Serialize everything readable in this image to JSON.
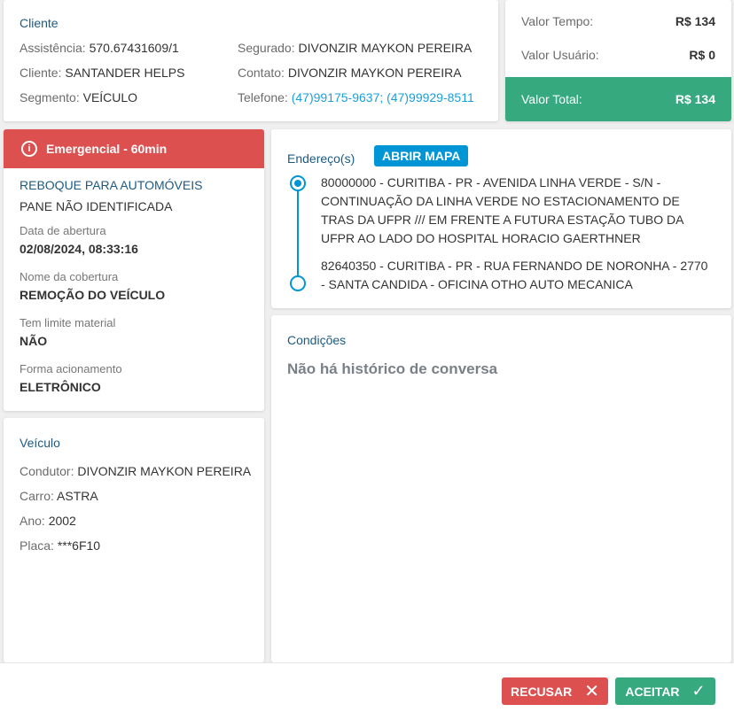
{
  "cliente": {
    "title": "Cliente",
    "assistencia_label": "Assistência:",
    "assistencia": "570.67431609/1",
    "cliente_label": "Cliente:",
    "cliente": "SANTANDER HELPS",
    "segmento_label": "Segmento:",
    "segmento": "VEÍCULO",
    "segurado_label": "Segurado:",
    "segurado": "DIVONZIR MAYKON PEREIRA",
    "contato_label": "Contato:",
    "contato": "DIVONZIR MAYKON PEREIRA",
    "telefone_label": "Telefone:",
    "telefone": "(47)99175-9637; (47)99929-8511"
  },
  "valores": {
    "tempo_label": "Valor Tempo:",
    "tempo": "R$ 134",
    "usuario_label": "Valor Usuário:",
    "usuario": "R$ 0",
    "total_label": "Valor Total:",
    "total": "R$ 134"
  },
  "servico": {
    "priority": "Emergencial - 60min",
    "tipo": "REBOQUE PARA AUTOMÓVEIS",
    "problema": "PANE NÃO IDENTIFICADA",
    "fields": [
      {
        "label": "Data de abertura",
        "value": "02/08/2024, 08:33:16"
      },
      {
        "label": "Nome da cobertura",
        "value": "REMOÇÃO DO VEÍCULO"
      },
      {
        "label": "Tem limite material",
        "value": "NÃO"
      },
      {
        "label": "Forma acionamento",
        "value": "ELETRÔNICO"
      }
    ]
  },
  "enderecos": {
    "title": "Endereço(s)",
    "map_button": "ABRIR MAPA",
    "items": [
      "80000000 - CURITIBA - PR - AVENIDA LINHA VERDE - S/N - CONTINUAÇÃO DA LINHA VERDE NO ESTACIONAMENTO DE TRAS DA UFPR /// EM FRENTE A FUTURA ESTAÇÃO TUBO DA UFPR AO LADO DO HOSPITAL HORACIO GAERTHNER",
      "82640350 - CURITIBA - PR - RUA FERNANDO DE NORONHA - 2770 - SANTA CANDIDA - OFICINA OTHO AUTO MECANICA"
    ]
  },
  "condicoes": {
    "title": "Condições",
    "empty": "Não há histórico de conversa"
  },
  "veiculo": {
    "title": "Veículo",
    "condutor_label": "Condutor:",
    "condutor": "DIVONZIR MAYKON PEREIRA",
    "carro_label": "Carro:",
    "carro": "ASTRA",
    "ano_label": "Ano:",
    "ano": "2002",
    "placa_label": "Placa:",
    "placa": "***6F10"
  },
  "actions": {
    "reject": "RECUSAR",
    "accept": "ACEITAR"
  },
  "colors": {
    "accent": "#0096d6",
    "danger": "#dc5050",
    "success": "#36a97f",
    "title": "#1d5a82"
  }
}
